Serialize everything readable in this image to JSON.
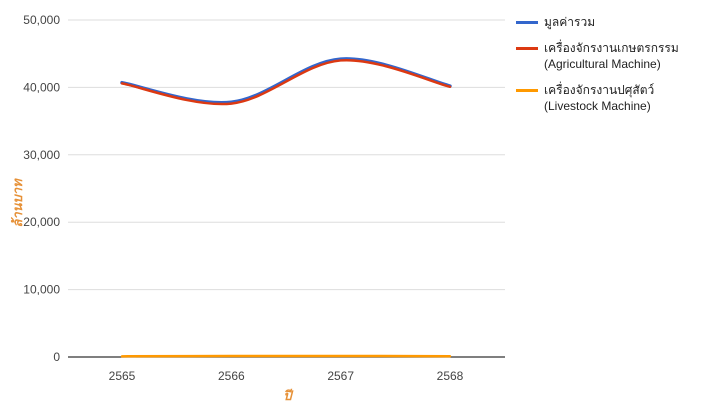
{
  "chart_data": {
    "type": "line",
    "title": "",
    "xlabel": "ปี",
    "ylabel": "ล้านบาท",
    "x": [
      "2565",
      "2566",
      "2567",
      "2568"
    ],
    "ylim": [
      0,
      50000
    ],
    "yticks": [
      "0",
      "10,000",
      "20,000",
      "30,000",
      "40,000",
      "50,000"
    ],
    "grid": true,
    "legend_position": "right",
    "series": [
      {
        "name": "มูลค่ารวม",
        "color": "#3366cc",
        "values": [
          40700,
          37800,
          44200,
          40200
        ]
      },
      {
        "name": "เครื่องจักรงานเกษตรกรรม (Agricultural Machine)",
        "color": "#dc3912",
        "values": [
          40600,
          37600,
          44000,
          40100
        ]
      },
      {
        "name": "เครื่องจักรงานปศุสัตว์ (Livestock Machine)",
        "color": "#ff9900",
        "values": [
          100,
          150,
          150,
          120
        ]
      }
    ],
    "axis_title_color": "#e69138"
  }
}
